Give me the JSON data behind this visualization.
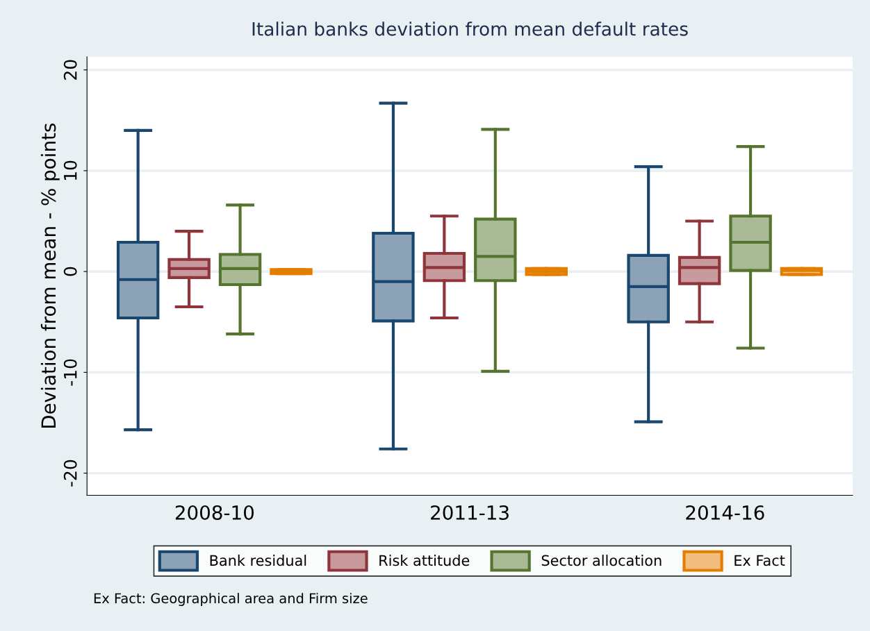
{
  "chart_data": {
    "type": "box",
    "title": "Italian banks deviation from mean default rates",
    "ylabel": "Deviation from mean - % points",
    "categories": [
      "2008-10",
      "2011-13",
      "2014-16"
    ],
    "series": [
      {
        "name": "Bank residual",
        "color": "#1a476f",
        "boxes": [
          {
            "low": -15.7,
            "q1": -4.6,
            "median": -0.8,
            "q3": 2.9,
            "high": 14.0
          },
          {
            "low": -17.6,
            "q1": -4.9,
            "median": -1.0,
            "q3": 3.8,
            "high": 16.7
          },
          {
            "low": -14.9,
            "q1": -5.0,
            "median": -1.5,
            "q3": 1.6,
            "high": 10.4
          }
        ]
      },
      {
        "name": "Risk attitude",
        "color": "#90353b",
        "boxes": [
          {
            "low": -3.5,
            "q1": -0.6,
            "median": 0.3,
            "q3": 1.2,
            "high": 4.0
          },
          {
            "low": -4.6,
            "q1": -0.9,
            "median": 0.4,
            "q3": 1.8,
            "high": 5.5
          },
          {
            "low": -5.0,
            "q1": -1.2,
            "median": 0.4,
            "q3": 1.4,
            "high": 5.0
          }
        ]
      },
      {
        "name": "Sector allocation",
        "color": "#55752f",
        "boxes": [
          {
            "low": -6.2,
            "q1": -1.3,
            "median": 0.3,
            "q3": 1.7,
            "high": 6.6
          },
          {
            "low": -9.9,
            "q1": -0.9,
            "median": 1.5,
            "q3": 5.2,
            "high": 14.1
          },
          {
            "low": -7.6,
            "q1": 0.1,
            "median": 2.9,
            "q3": 5.5,
            "high": 12.4
          }
        ]
      },
      {
        "name": "Ex Fact",
        "color": "#e37e00",
        "boxes": [
          {
            "low": -0.2,
            "q1": -0.2,
            "median": 0.0,
            "q3": 0.2,
            "high": 0.2
          },
          {
            "low": -0.3,
            "q1": -0.3,
            "median": 0.0,
            "q3": 0.3,
            "high": 0.3
          },
          {
            "low": -0.3,
            "q1": -0.3,
            "median": 0.1,
            "q3": 0.3,
            "high": 0.3
          }
        ]
      }
    ],
    "ylim": [
      -22.2,
      21.3
    ],
    "yticks": [
      -20,
      -10,
      0,
      10,
      20
    ],
    "grid": "y",
    "legend": "bottom",
    "annotations": [
      "Ex Fact: Geographical area and Firm size"
    ]
  }
}
